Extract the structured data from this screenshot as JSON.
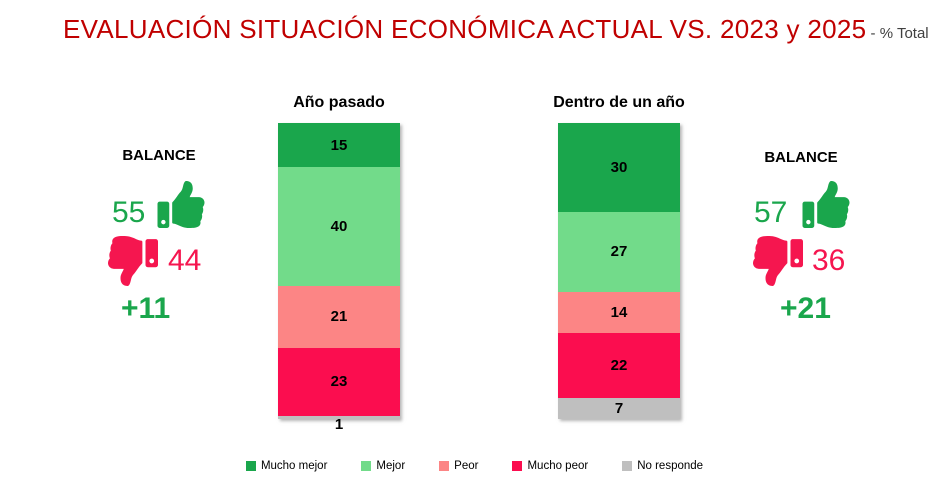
{
  "header": {
    "title": "EVALUACIÓN SITUACIÓN ECONÓMICA ACTUAL VS. 2023 y 2025",
    "suffix": " - % Total"
  },
  "colors": {
    "title_red": "#C00000",
    "mucho_mejor": "#1AA64C",
    "mejor": "#72DB8A",
    "peor": "#FC8585",
    "mucho_peor": "#FB0D4F",
    "no_responde": "#BFBFBF",
    "green_text": "#1AA64C",
    "pink_text": "#F5164F"
  },
  "balance_left": {
    "label": "BALANCE",
    "positive": "55",
    "negative": "44",
    "net": "+11"
  },
  "balance_right": {
    "label": "BALANCE",
    "positive": "57",
    "negative": "36",
    "net": "+21"
  },
  "icons": {
    "positive": "thumbs-up-icon",
    "negative": "thumbs-down-icon"
  },
  "chart_data": {
    "type": "bar",
    "subtype": "stacked-vertical-100",
    "unit": "% Total",
    "categories": [
      "Mucho mejor",
      "Mejor",
      "Peor",
      "Mucho peor",
      "No responde"
    ],
    "series_colors": [
      "#1AA64C",
      "#72DB8A",
      "#FC8585",
      "#FB0D4F",
      "#BFBFBF"
    ],
    "charts": [
      {
        "title": "Año pasado",
        "values": [
          15,
          40,
          21,
          23,
          1
        ]
      },
      {
        "title": "Dentro de un año",
        "values": [
          30,
          27,
          14,
          22,
          7
        ]
      }
    ],
    "ylim": [
      0,
      100
    ],
    "grid": false,
    "legend_position": "bottom"
  },
  "legend": {
    "items": [
      {
        "label": "Mucho mejor",
        "color": "#1AA64C"
      },
      {
        "label": "Mejor",
        "color": "#72DB8A"
      },
      {
        "label": "Peor",
        "color": "#FC8585"
      },
      {
        "label": "Mucho peor",
        "color": "#FB0D4F"
      },
      {
        "label": "No responde",
        "color": "#BFBFBF"
      }
    ]
  }
}
